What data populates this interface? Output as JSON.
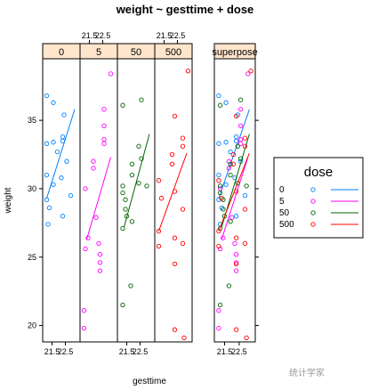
{
  "chart_data": {
    "type": "scatter",
    "title": "weight ~ gesttime + dose",
    "xlabel": "gesttime",
    "ylabel": "weight",
    "xlim": [
      20.8,
      23.6
    ],
    "ylim": [
      18.8,
      39.5
    ],
    "x_ticks": [
      21.5,
      22.5
    ],
    "y_ticks": [
      20,
      25,
      30,
      35
    ],
    "panels": [
      "0",
      "5",
      "50",
      "500",
      "superpose"
    ],
    "legend": {
      "title": "dose",
      "placement": "right",
      "entries": [
        {
          "label": "0",
          "color": "#0080ff"
        },
        {
          "label": "5",
          "color": "#ff00ff"
        },
        {
          "label": "50",
          "color": "#006400"
        },
        {
          "label": "500",
          "color": "#ff0000"
        }
      ]
    },
    "series": [
      {
        "name": "0",
        "color": "#0080ff",
        "points": [
          [
            21.1,
            36.8
          ],
          [
            21.6,
            36.3
          ],
          [
            22.4,
            35.4
          ],
          [
            21.1,
            33.3
          ],
          [
            21.6,
            33.4
          ],
          [
            22.3,
            33.8
          ],
          [
            22.3,
            33.5
          ],
          [
            21.9,
            32.7
          ],
          [
            22.6,
            32.0
          ],
          [
            21.1,
            31.0
          ],
          [
            21.6,
            30.3
          ],
          [
            22.2,
            30.8
          ],
          [
            22.9,
            29.5
          ],
          [
            21.1,
            29.2
          ],
          [
            21.3,
            28.6
          ],
          [
            22.3,
            28.0
          ],
          [
            21.2,
            27.4
          ]
        ],
        "fit": [
          [
            21.1,
            29.3
          ],
          [
            23.2,
            35.8
          ]
        ]
      },
      {
        "name": "5",
        "color": "#ff00ff",
        "points": [
          [
            23.1,
            38.4
          ],
          [
            22.6,
            35.8
          ],
          [
            22.6,
            34.6
          ],
          [
            22.6,
            33.6
          ],
          [
            22.6,
            33.3
          ],
          [
            21.8,
            32.0
          ],
          [
            21.8,
            31.5
          ],
          [
            21.2,
            30.0
          ],
          [
            22.0,
            27.9
          ],
          [
            21.4,
            26.4
          ],
          [
            22.2,
            26.0
          ],
          [
            21.2,
            25.6
          ],
          [
            22.3,
            25.2
          ],
          [
            22.3,
            24.6
          ],
          [
            22.3,
            24.0
          ],
          [
            21.1,
            21.1
          ],
          [
            21.1,
            19.8
          ]
        ],
        "fit": [
          [
            21.3,
            26.3
          ],
          [
            23.1,
            32.3
          ]
        ]
      },
      {
        "name": "50",
        "color": "#006400",
        "points": [
          [
            22.6,
            36.5
          ],
          [
            21.2,
            36.1
          ],
          [
            22.4,
            33.1
          ],
          [
            22.6,
            32.2
          ],
          [
            21.9,
            31.8
          ],
          [
            21.9,
            31.0
          ],
          [
            23.0,
            30.2
          ],
          [
            22.4,
            30.4
          ],
          [
            21.2,
            30.2
          ],
          [
            21.2,
            29.7
          ],
          [
            21.4,
            29.2
          ],
          [
            21.4,
            28.5
          ],
          [
            21.5,
            28.0
          ],
          [
            21.9,
            27.6
          ],
          [
            21.2,
            27.1
          ],
          [
            21.8,
            22.9
          ],
          [
            21.2,
            21.5
          ]
        ],
        "fit": [
          [
            21.3,
            27.2
          ],
          [
            23.2,
            34.0
          ]
        ]
      },
      {
        "name": "500",
        "color": "#ff0000",
        "points": [
          [
            23.3,
            38.6
          ],
          [
            22.3,
            35.3
          ],
          [
            22.9,
            33.7
          ],
          [
            22.9,
            33.1
          ],
          [
            22.1,
            32.5
          ],
          [
            22.1,
            31.8
          ],
          [
            21.1,
            30.6
          ],
          [
            22.3,
            29.8
          ],
          [
            21.3,
            29.3
          ],
          [
            22.9,
            28.5
          ],
          [
            21.1,
            26.9
          ],
          [
            22.3,
            26.4
          ],
          [
            21.1,
            25.8
          ],
          [
            22.9,
            26.0
          ],
          [
            22.3,
            24.5
          ],
          [
            22.3,
            19.7
          ],
          [
            23.0,
            19.1
          ]
        ],
        "fit": [
          [
            21.1,
            26.9
          ],
          [
            23.2,
            32.6
          ]
        ]
      }
    ]
  },
  "watermark": "统计学家"
}
